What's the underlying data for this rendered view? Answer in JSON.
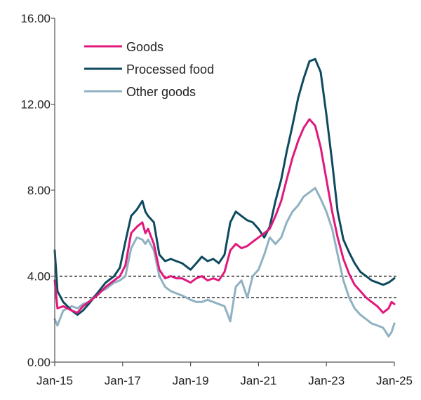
{
  "chart_data": {
    "type": "line",
    "title": "",
    "xlabel": "",
    "ylabel": "",
    "ylim": [
      0,
      16
    ],
    "y_ticks": [
      "0.00",
      "4.00",
      "8.00",
      "12.00",
      "16.00"
    ],
    "x_tick_labels": [
      "Jan-15",
      "Jan-17",
      "Jan-19",
      "Jan-21",
      "Jan-23",
      "Jan-25"
    ],
    "x_tick_values": [
      2015.0,
      2017.0,
      2019.0,
      2021.0,
      2023.0,
      2025.0
    ],
    "xlim": [
      2015.0,
      2025.0
    ],
    "reference_lines": [
      4.0,
      3.0
    ],
    "legend_position": "top-left",
    "grid": false,
    "series": [
      {
        "name": "Goods",
        "color": "#e0197d",
        "x": [
          2015.0,
          2015.08,
          2015.25,
          2015.5,
          2015.67,
          2015.83,
          2016.0,
          2016.25,
          2016.5,
          2016.75,
          2016.92,
          2017.08,
          2017.25,
          2017.42,
          2017.58,
          2017.67,
          2017.75,
          2017.92,
          2018.08,
          2018.25,
          2018.42,
          2018.58,
          2018.75,
          2019.0,
          2019.17,
          2019.33,
          2019.5,
          2019.67,
          2019.83,
          2020.0,
          2020.17,
          2020.33,
          2020.5,
          2020.67,
          2020.83,
          2021.0,
          2021.17,
          2021.33,
          2021.5,
          2021.67,
          2021.83,
          2022.0,
          2022.17,
          2022.33,
          2022.5,
          2022.67,
          2022.83,
          2023.0,
          2023.17,
          2023.33,
          2023.5,
          2023.67,
          2023.83,
          2024.0,
          2024.17,
          2024.33,
          2024.5,
          2024.67,
          2024.83,
          2024.92,
          2025.0
        ],
        "values": [
          3.8,
          2.5,
          2.6,
          2.4,
          2.3,
          2.6,
          2.8,
          3.1,
          3.5,
          3.8,
          4.0,
          4.5,
          6.0,
          6.3,
          6.5,
          6.0,
          6.2,
          5.5,
          4.3,
          3.9,
          4.0,
          3.9,
          3.9,
          3.7,
          3.9,
          4.0,
          3.8,
          3.9,
          3.8,
          4.2,
          5.2,
          5.5,
          5.3,
          5.4,
          5.6,
          5.8,
          6.0,
          6.2,
          6.8,
          7.5,
          8.5,
          9.5,
          10.3,
          10.9,
          11.3,
          11.0,
          10.0,
          8.5,
          7.0,
          5.8,
          4.8,
          4.1,
          3.6,
          3.3,
          3.0,
          2.8,
          2.6,
          2.3,
          2.5,
          2.8,
          2.7
        ]
      },
      {
        "name": "Processed food",
        "color": "#0d4a5f",
        "x": [
          2015.0,
          2015.08,
          2015.25,
          2015.5,
          2015.67,
          2015.83,
          2016.0,
          2016.25,
          2016.5,
          2016.75,
          2016.92,
          2017.08,
          2017.25,
          2017.42,
          2017.58,
          2017.67,
          2017.75,
          2017.92,
          2018.08,
          2018.25,
          2018.42,
          2018.58,
          2018.75,
          2019.0,
          2019.17,
          2019.33,
          2019.5,
          2019.67,
          2019.83,
          2020.0,
          2020.17,
          2020.33,
          2020.5,
          2020.67,
          2020.83,
          2021.0,
          2021.17,
          2021.33,
          2021.5,
          2021.67,
          2021.83,
          2022.0,
          2022.17,
          2022.33,
          2022.5,
          2022.67,
          2022.83,
          2023.0,
          2023.17,
          2023.33,
          2023.5,
          2023.67,
          2023.83,
          2024.0,
          2024.17,
          2024.33,
          2024.5,
          2024.67,
          2024.83,
          2024.92,
          2025.0
        ],
        "values": [
          5.2,
          3.3,
          2.8,
          2.4,
          2.2,
          2.4,
          2.7,
          3.2,
          3.7,
          4.0,
          4.4,
          5.6,
          6.8,
          7.1,
          7.5,
          7.0,
          6.8,
          6.5,
          5.0,
          4.7,
          4.8,
          4.7,
          4.6,
          4.3,
          4.6,
          4.9,
          4.7,
          4.8,
          4.6,
          5.0,
          6.5,
          7.0,
          6.8,
          6.6,
          6.5,
          6.2,
          5.8,
          6.3,
          7.5,
          8.5,
          9.8,
          11.0,
          12.3,
          13.2,
          14.0,
          14.1,
          13.5,
          11.5,
          9.3,
          7.0,
          5.7,
          5.1,
          4.6,
          4.2,
          4.0,
          3.8,
          3.7,
          3.6,
          3.7,
          3.8,
          3.9
        ]
      },
      {
        "name": "Other goods",
        "color": "#8fb1c1",
        "x": [
          2015.0,
          2015.08,
          2015.25,
          2015.5,
          2015.67,
          2015.83,
          2016.0,
          2016.25,
          2016.5,
          2016.75,
          2016.92,
          2017.08,
          2017.25,
          2017.42,
          2017.58,
          2017.67,
          2017.75,
          2017.92,
          2018.08,
          2018.25,
          2018.42,
          2018.58,
          2018.75,
          2019.0,
          2019.17,
          2019.33,
          2019.5,
          2019.67,
          2019.83,
          2020.0,
          2020.17,
          2020.33,
          2020.5,
          2020.67,
          2020.83,
          2021.0,
          2021.17,
          2021.33,
          2021.5,
          2021.67,
          2021.83,
          2022.0,
          2022.17,
          2022.33,
          2022.5,
          2022.67,
          2022.83,
          2023.0,
          2023.17,
          2023.33,
          2023.5,
          2023.67,
          2023.83,
          2024.0,
          2024.17,
          2024.33,
          2024.5,
          2024.67,
          2024.83,
          2024.92,
          2025.0
        ],
        "values": [
          2.0,
          1.7,
          2.4,
          2.6,
          2.5,
          2.7,
          2.8,
          3.2,
          3.4,
          3.7,
          3.8,
          4.0,
          5.3,
          5.8,
          5.7,
          5.5,
          5.7,
          5.2,
          4.0,
          3.5,
          3.3,
          3.2,
          3.1,
          2.9,
          2.8,
          2.8,
          2.9,
          2.8,
          2.7,
          2.6,
          1.9,
          3.5,
          3.8,
          3.0,
          4.0,
          4.3,
          5.0,
          5.8,
          5.5,
          5.8,
          6.5,
          7.0,
          7.3,
          7.7,
          7.9,
          8.1,
          7.6,
          7.0,
          6.2,
          5.0,
          3.8,
          3.0,
          2.5,
          2.2,
          2.0,
          1.8,
          1.7,
          1.6,
          1.2,
          1.4,
          1.8
        ]
      }
    ]
  }
}
